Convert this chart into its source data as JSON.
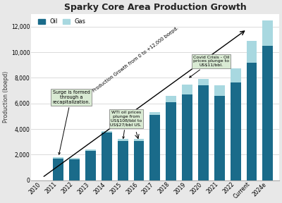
{
  "title": "Sparky Core Area Production Growth",
  "ylabel": "Production (boepd)",
  "categories": [
    "2010",
    "2011",
    "2012",
    "2013",
    "2014",
    "2015",
    "2016",
    "2017",
    "2018",
    "2019",
    "2020",
    "2021",
    "2022",
    "Current",
    "2024e"
  ],
  "oil_values": [
    0,
    1700,
    1650,
    2300,
    3700,
    3050,
    3050,
    5100,
    6100,
    6700,
    7400,
    6600,
    7650,
    9200,
    10500
  ],
  "gas_values": [
    0,
    100,
    100,
    100,
    150,
    200,
    200,
    250,
    500,
    800,
    500,
    800,
    1100,
    1700,
    2000
  ],
  "oil_color": "#1a6b8a",
  "gas_color": "#a8d8e0",
  "ylim": [
    0,
    13000
  ],
  "yticks": [
    0,
    2000,
    4000,
    6000,
    8000,
    10000,
    12000
  ],
  "ytick_labels": [
    "0",
    "2,000",
    "4,000",
    "6,000",
    "8,000",
    "10,000",
    "12,000"
  ],
  "bg_color": "#e8e8e8",
  "plot_bg_color": "#ffffff",
  "annotation1_text": "Surge is formed\nthrough a\nrecapitalization.",
  "annotation2_text": "WTI oil prices\nplunge from\nUS$108/bbl to\nUS$27/bbl US.",
  "annotation3_text": "Covid Crisis - Oil\nprices plunge to\nUS$11/bbl.",
  "diagonal_text": "Production Growth from 0 to +12,000 boepd."
}
